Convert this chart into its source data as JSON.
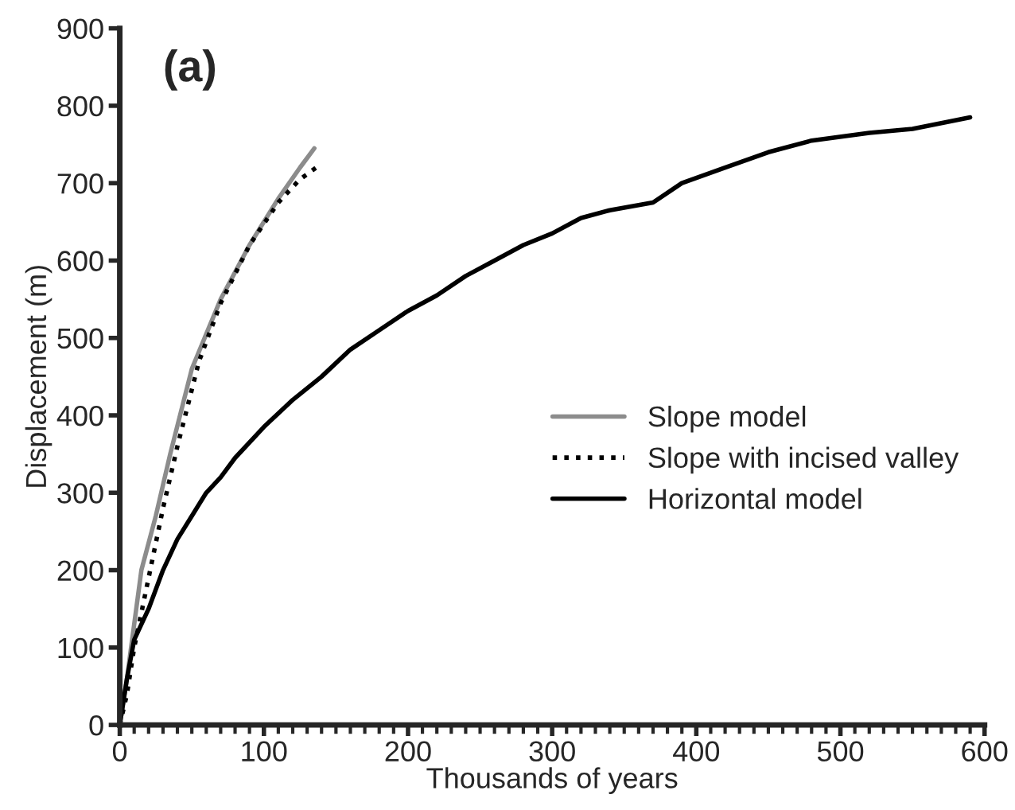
{
  "chart_data": {
    "type": "line",
    "xlabel": "Thousands of years",
    "ylabel": "Displacement (m)",
    "annotations": [
      "(a)"
    ],
    "xlim": [
      0,
      600
    ],
    "xticks": [
      0,
      100,
      200,
      300,
      400,
      500,
      600
    ],
    "ylim": [
      0,
      900
    ],
    "yticks": [
      0,
      100,
      200,
      300,
      400,
      500,
      600,
      700,
      800,
      900
    ],
    "legend": "right",
    "grid": false,
    "marker": "none",
    "series": [
      {
        "name": "Slope model",
        "color": "#8c8c8c",
        "line_style": "solid",
        "x": [
          0,
          5,
          10,
          15,
          25,
          35,
          50,
          70,
          90,
          110,
          125,
          135
        ],
        "values": [
          0,
          60,
          130,
          200,
          270,
          350,
          460,
          550,
          620,
          680,
          720,
          745
        ]
      },
      {
        "name": "Slope with incised valley",
        "color": "#000000",
        "line_style": "dotted",
        "x": [
          0,
          5,
          10,
          20,
          30,
          40,
          55,
          70,
          90,
          110,
          125,
          140
        ],
        "values": [
          0,
          40,
          100,
          190,
          280,
          360,
          470,
          545,
          620,
          675,
          705,
          725
        ]
      },
      {
        "name": "Horizontal model",
        "color": "#000000",
        "line_style": "solid",
        "x": [
          0,
          5,
          10,
          20,
          30,
          40,
          50,
          60,
          70,
          80,
          100,
          120,
          140,
          160,
          180,
          200,
          220,
          240,
          260,
          280,
          300,
          320,
          340,
          370,
          390,
          420,
          450,
          480,
          520,
          550,
          590
        ],
        "values": [
          0,
          60,
          110,
          150,
          200,
          240,
          270,
          300,
          320,
          345,
          385,
          420,
          450,
          485,
          510,
          535,
          555,
          580,
          600,
          620,
          635,
          655,
          665,
          675,
          700,
          720,
          740,
          755,
          765,
          770,
          785
        ]
      }
    ]
  }
}
